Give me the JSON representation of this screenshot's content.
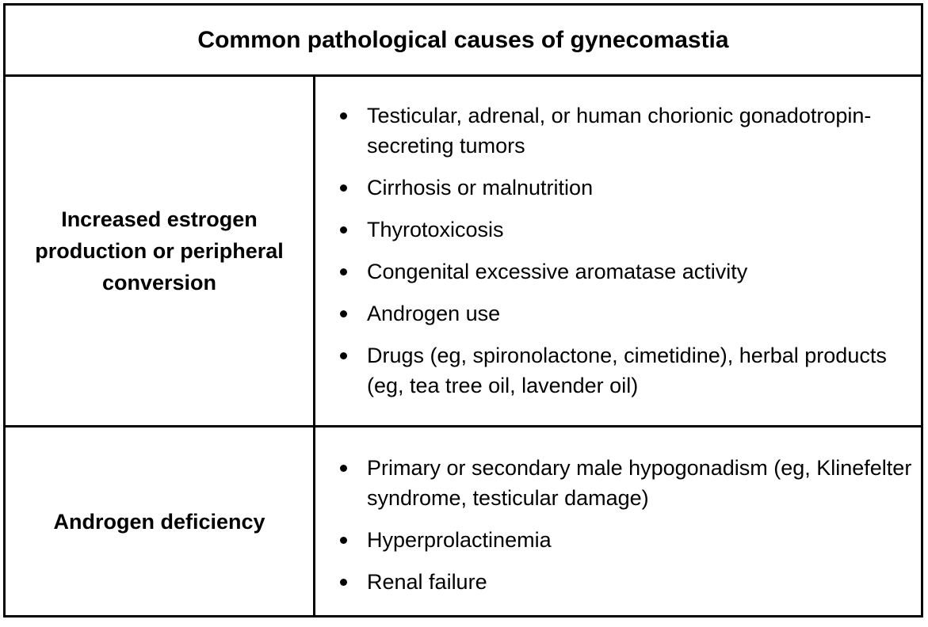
{
  "table": {
    "title": "Common pathological causes of gynecomastia",
    "rows": [
      {
        "category": "Increased estrogen production or peripheral conversion",
        "items": [
          "Testicular, adrenal, or human chorionic gonadotropin-secreting tumors",
          "Cirrhosis or malnutrition",
          "Thyrotoxicosis",
          "Congenital excessive aromatase activity",
          "Androgen use",
          "Drugs (eg, spironolactone, cimetidine), herbal products (eg, tea tree oil, lavender oil)"
        ]
      },
      {
        "category": "Androgen deficiency",
        "items": [
          "Primary or secondary male hypogonadism (eg, Klinefelter syndrome, testicular damage)",
          "Hyperprolactinemia",
          "Renal failure"
        ]
      }
    ]
  }
}
